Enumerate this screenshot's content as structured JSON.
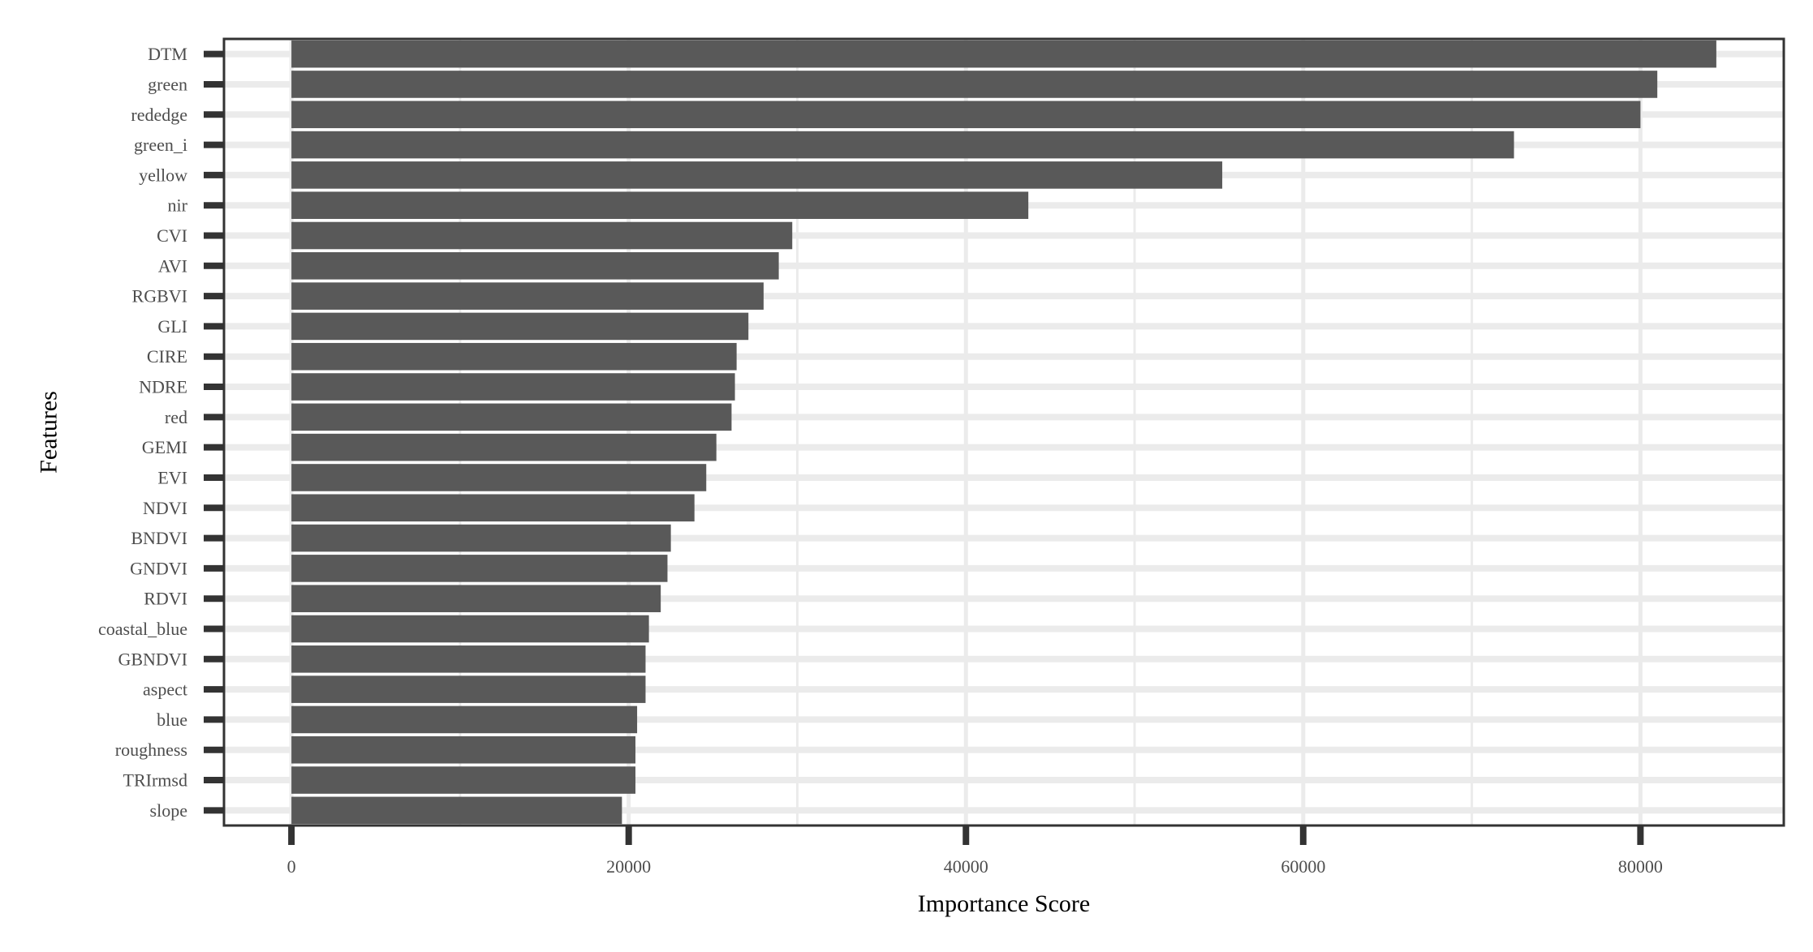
{
  "chart_data": {
    "type": "bar",
    "orientation": "horizontal",
    "title": "",
    "xlabel": "Importance Score",
    "ylabel": "Features",
    "xlim": [
      -4000,
      88500
    ],
    "xticks": [
      0,
      20000,
      40000,
      60000,
      80000
    ],
    "xtick_labels": [
      "0",
      "20000",
      "40000",
      "60000",
      "80000"
    ],
    "grid": true,
    "legend": "none",
    "categories": [
      "DTM",
      "green",
      "rededge",
      "green_i",
      "yellow",
      "nir",
      "CVI",
      "AVI",
      "RGBVI",
      "GLI",
      "CIRE",
      "NDRE",
      "red",
      "GEMI",
      "EVI",
      "NDVI",
      "BNDVI",
      "GNDVI",
      "RDVI",
      "coastal_blue",
      "GBNDVI",
      "aspect",
      "blue",
      "roughness",
      "TRIrmsd",
      "slope"
    ],
    "values": [
      84500,
      81000,
      80000,
      72500,
      55200,
      43700,
      29700,
      28900,
      28000,
      27100,
      26400,
      26300,
      26100,
      25200,
      24600,
      23900,
      22500,
      22300,
      21900,
      21200,
      21000,
      21000,
      20500,
      20400,
      20400,
      19600
    ],
    "colors": {
      "bar": "#595959",
      "grid": "#ebebeb",
      "panel_border": "#333333",
      "tick": "#333333"
    }
  }
}
